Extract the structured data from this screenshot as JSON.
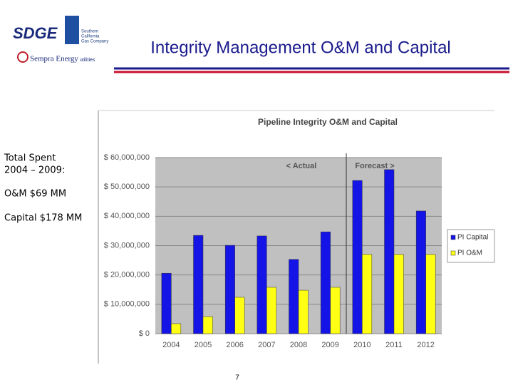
{
  "header": {
    "title": "Integrity Management O&M and Capital",
    "logos": [
      "SDGE",
      "Southern",
      "California",
      "Gas Company",
      "Sempra Energy",
      "utilities"
    ]
  },
  "notes": [
    "Total Spent",
    "2004 – 2009:",
    "O&M $69 MM",
    "Capital $178 MM"
  ],
  "page_number": "7",
  "chart_data": {
    "type": "bar",
    "title": "Pipeline Integrity O&M and Capital",
    "annotations": [
      "< Actual",
      "Forecast >"
    ],
    "categories": [
      "2004",
      "2005",
      "2006",
      "2007",
      "2008",
      "2009",
      "2010",
      "2011",
      "2012"
    ],
    "series": [
      {
        "name": "PI Capital",
        "color": "#1414e6",
        "values": [
          20600000,
          33500000,
          30100000,
          33300000,
          25300000,
          34700000,
          52200000,
          55900000,
          41800000
        ]
      },
      {
        "name": "PI O&M",
        "color": "#ffff14",
        "values": [
          3400000,
          5800000,
          12400000,
          15800000,
          14800000,
          15800000,
          27000000,
          27000000,
          27000000
        ]
      }
    ],
    "ylim": [
      0,
      60000000
    ],
    "yticks": [
      {
        "value": 0,
        "label": "$ 0"
      },
      {
        "value": 10000000,
        "label": "$ 10,000,000"
      },
      {
        "value": 20000000,
        "label": "$ 20,000,000"
      },
      {
        "value": 30000000,
        "label": "$ 30,000,000"
      },
      {
        "value": 40000000,
        "label": "$ 40,000,000"
      },
      {
        "value": 50000000,
        "label": "$ 50,000,000"
      },
      {
        "value": 60000000,
        "label": "$ 60,000,000"
      }
    ],
    "grid": true,
    "legend": "right"
  }
}
